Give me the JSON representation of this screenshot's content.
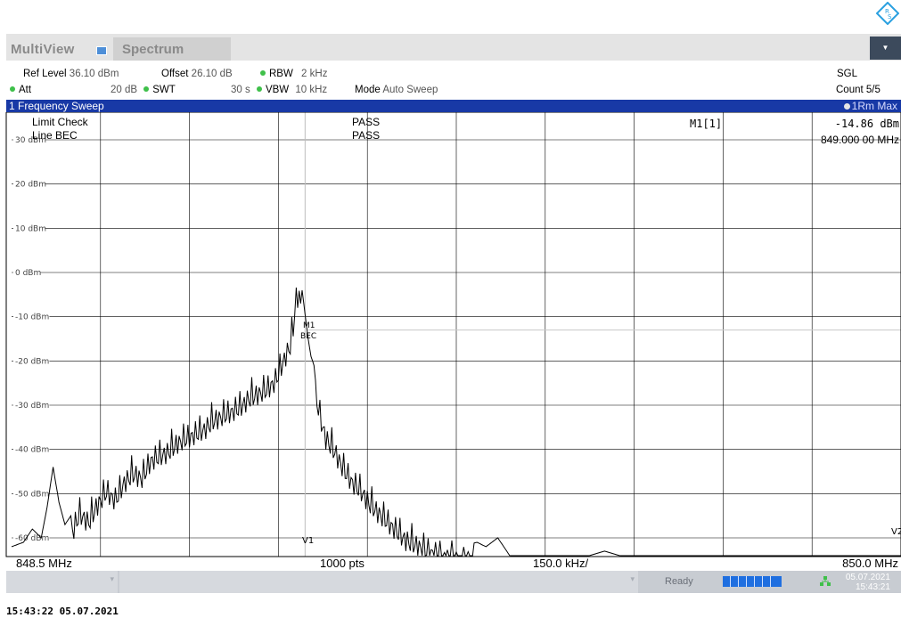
{
  "window": {
    "tab_multiview": "MultiView",
    "tab_spectrum": "Spectrum",
    "menu_icon": "dropdown-arrow-icon"
  },
  "settings": {
    "ref_level_label": "Ref Level",
    "ref_level_value": "36.10 dBm",
    "offset_label": "Offset",
    "offset_value": "26.10 dB",
    "rbw_label": "RBW",
    "rbw_value": "2 kHz",
    "att_label": "Att",
    "att_value": "20 dB",
    "swt_label": "SWT",
    "swt_value": "30 s",
    "vbw_label": "VBW",
    "vbw_value": "10 kHz",
    "mode_label": "Mode",
    "mode_value": "Auto Sweep",
    "sgl": "SGL",
    "count": "Count 5/5"
  },
  "trace_header": {
    "title": "1 Frequency Sweep",
    "trace_mode": "1Rm Max"
  },
  "checks": {
    "limit_check_label": "Limit Check",
    "limit_check_result": "PASS",
    "line_label": "Line BEC",
    "line_result": "PASS"
  },
  "marker": {
    "name": "M1[1]",
    "level": "-14.86 dBm",
    "frequency": "849.000 00 MHz",
    "plot_label": "M1",
    "limit_label": "BEC",
    "vline1": "V1",
    "vline2": "V2"
  },
  "axis_footer": {
    "start": "848.5 MHz",
    "points": "1000 pts",
    "span_div": "150.0 kHz/",
    "stop": "850.0 MHz"
  },
  "status": {
    "ready": "Ready",
    "date": "05.07.2021",
    "time": "15:43:21"
  },
  "footer_timestamp": "15:43:22  05.07.2021",
  "colors": {
    "trace_header_bg": "#1839a6",
    "status_dot": "#3fc04a",
    "progress": "#1f6fe0"
  },
  "chart_data": {
    "type": "line",
    "x_start_mhz": 848.5,
    "x_stop_mhz": 850.0,
    "xlabel": "",
    "ylabel": "",
    "ylim": [
      -65,
      35
    ],
    "y_ticks": [
      "30 dBm",
      "20 dBm",
      "10 dBm",
      "0 dBm",
      "-10 dBm",
      "-20 dBm",
      "-30 dBm",
      "-40 dBm",
      "-50 dBm",
      "-60 dBm"
    ],
    "y_tick_values": [
      30,
      20,
      10,
      0,
      -10,
      -20,
      -30,
      -40,
      -50,
      -60
    ],
    "limit_line_bec_dbm": -13,
    "v1_mhz": 848.995,
    "v2_mhz": 850.0,
    "marker_m1": {
      "x_mhz": 849.0,
      "y_dbm": -14.86
    },
    "grid": true,
    "series": [
      {
        "x": [
          848.5,
          848.52,
          848.535,
          848.55,
          848.56,
          848.57,
          848.58,
          848.59,
          848.6,
          848.615,
          848.63,
          848.645,
          848.66,
          848.675,
          848.69,
          848.705,
          848.72,
          848.735,
          848.75,
          848.765,
          848.78,
          848.795,
          848.81,
          848.825,
          848.84,
          848.855,
          848.87,
          848.885,
          848.9,
          848.915,
          848.93,
          848.945,
          848.96,
          848.97,
          848.975,
          848.98,
          848.985,
          848.99,
          849.0,
          849.005,
          849.01,
          849.02,
          849.03,
          849.045,
          849.06,
          849.075,
          849.09,
          849.105,
          849.12,
          849.135,
          849.15,
          849.165,
          849.18,
          849.195,
          849.21,
          849.225,
          849.24,
          849.255,
          849.27,
          849.285,
          849.3,
          849.32,
          849.34,
          849.36,
          849.38,
          849.4,
          849.45,
          849.5,
          849.55,
          849.6,
          849.65,
          849.7,
          849.75,
          849.8,
          849.85,
          849.9,
          849.95,
          850.0
        ],
        "values": [
          -62,
          -61,
          -58,
          -60,
          -53,
          -44,
          -52,
          -57,
          -55,
          -50,
          -52,
          -48,
          -45,
          -47,
          -43,
          -41,
          -42,
          -38,
          -37,
          -36,
          -34,
          -33,
          -32,
          -31,
          -29,
          -28,
          -27,
          -26,
          -24,
          -23,
          -22,
          -20,
          -15,
          -12,
          -8,
          -1,
          -1,
          -4,
          -14.86,
          -19,
          -21,
          -28,
          -33,
          -36,
          -40,
          -43,
          -45,
          -48,
          -50,
          -52,
          -54,
          -56,
          -57,
          -58,
          -59,
          -60,
          -60.5,
          -61,
          -61.5,
          -61,
          -62,
          -60,
          -64,
          -65,
          -65,
          -65,
          -65,
          -63,
          -65,
          -65,
          -65,
          -65,
          -65,
          -65,
          -65,
          -65,
          -65,
          -65
        ]
      }
    ]
  }
}
